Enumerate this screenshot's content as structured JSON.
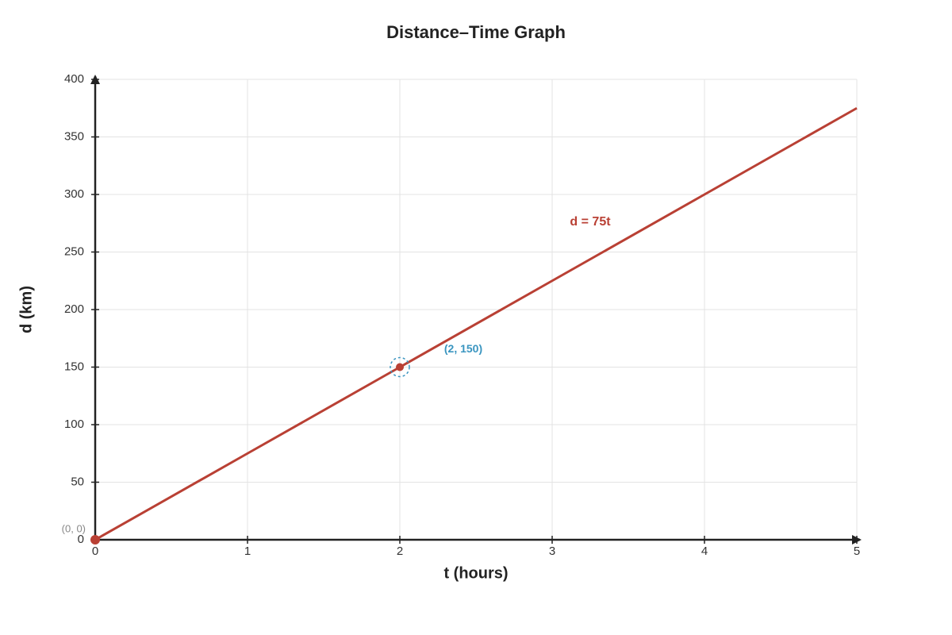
{
  "chart_data": {
    "type": "line",
    "title": "Distance–Time Graph",
    "x_label": "t (hours)",
    "y_label": "d (km)",
    "x": [
      0,
      1,
      2,
      3,
      4,
      5
    ],
    "series": [
      {
        "name": "d = 75t",
        "color": "#b94034",
        "values": [
          0,
          75,
          150,
          225,
          300,
          375
        ]
      }
    ],
    "points": [
      {
        "x": 0,
        "y": 0,
        "label": "(0, 0)",
        "color": "#888888"
      },
      {
        "x": 2,
        "y": 150,
        "label": "(2, 150)",
        "color": "#3a95c0"
      }
    ],
    "xlim": [
      0,
      5
    ],
    "xticks": [
      0,
      1,
      2,
      3,
      4,
      5
    ],
    "ylim": [
      0,
      400
    ],
    "yticks": [
      0,
      50,
      100,
      150,
      200,
      250,
      300,
      350,
      400
    ],
    "grid": true
  }
}
